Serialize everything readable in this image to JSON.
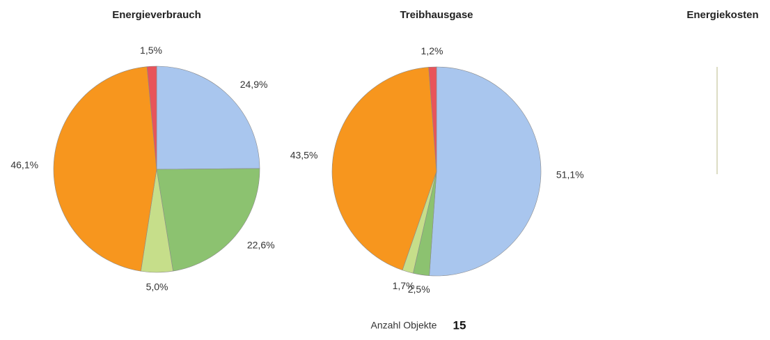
{
  "chart_data": [
    {
      "type": "pie",
      "title": "Energieverbrauch",
      "values": [
        24.9,
        22.6,
        5.0,
        46.1,
        1.5
      ],
      "value_labels": [
        "24,9%",
        "22,6%",
        "5,0%",
        "46,1%",
        "1,5%"
      ],
      "colors": [
        "#a9c6ee",
        "#8cc270",
        "#c6de8a",
        "#f7961e",
        "#e8545a"
      ]
    },
    {
      "type": "pie",
      "title": "Treibhausgase",
      "values": [
        51.1,
        2.5,
        1.7,
        43.5,
        1.2
      ],
      "value_labels": [
        "51,1%",
        "2,5%",
        "1,7%",
        "43,5%",
        "1,2%"
      ],
      "colors": [
        "#a9c6ee",
        "#8cc270",
        "#c6de8a",
        "#f7961e",
        "#e8545a"
      ]
    },
    {
      "type": "pie",
      "title": "Energiekosten",
      "values": []
    }
  ],
  "footer": {
    "label": "Anzahl Objekte",
    "value": 15
  }
}
